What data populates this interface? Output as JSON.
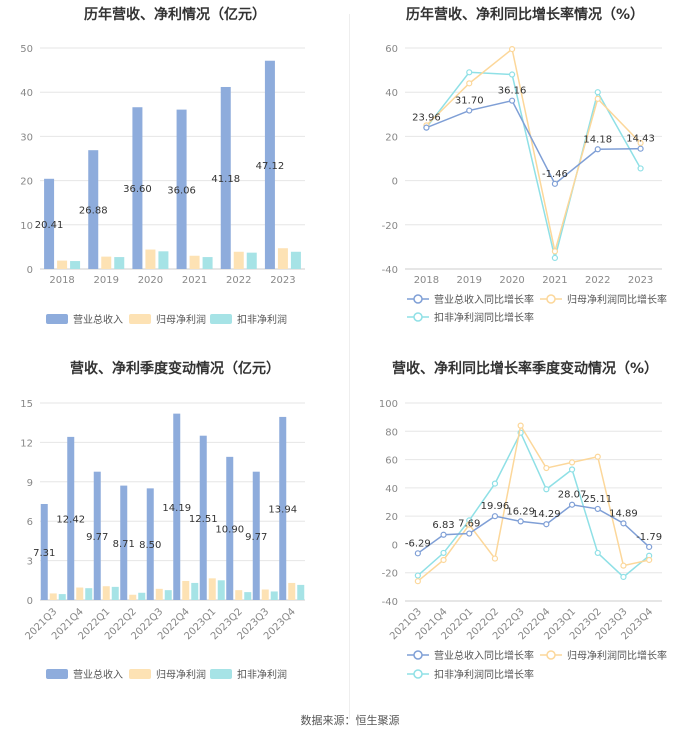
{
  "source": "数据来源：恒生聚源",
  "colors": {
    "revenue": "#8eacdc",
    "net_profit": "#fde2b4",
    "deducted_profit": "#a6e3e6",
    "grid": "#e6e6e6",
    "axis_text": "#888888",
    "label_text": "#333333"
  },
  "chart_data": [
    {
      "type": "bar",
      "title": "历年营收、净利情况（亿元）",
      "categories": [
        "2018",
        "2019",
        "2020",
        "2021",
        "2022",
        "2023"
      ],
      "ylim": [
        0,
        50
      ],
      "yticks": [
        0,
        10,
        20,
        30,
        40,
        50
      ],
      "series": [
        {
          "name": "营业总收入",
          "values": [
            20.41,
            26.88,
            36.6,
            36.06,
            41.18,
            47.12
          ],
          "labels": [
            "20.41",
            "26.88",
            "36.60",
            "36.06",
            "41.18",
            "47.12"
          ]
        },
        {
          "name": "归母净利润",
          "values": [
            1.9,
            2.8,
            4.4,
            3.0,
            3.9,
            4.7
          ]
        },
        {
          "name": "扣非净利润",
          "values": [
            1.8,
            2.7,
            4.0,
            2.7,
            3.7,
            3.9
          ]
        }
      ]
    },
    {
      "type": "line",
      "title": "历年营收、净利同比增长率情况（%）",
      "categories": [
        "2018",
        "2019",
        "2020",
        "2021",
        "2022",
        "2023"
      ],
      "ylim": [
        -40,
        60
      ],
      "yticks": [
        -40,
        -20,
        0,
        20,
        40,
        60
      ],
      "series": [
        {
          "name": "营业总收入同比增长率",
          "values": [
            23.96,
            31.7,
            36.16,
            -1.46,
            14.18,
            14.43
          ],
          "labels": [
            "23.96",
            "31.70",
            "36.16",
            "-1.46",
            "14.18",
            "14.43"
          ]
        },
        {
          "name": "归母净利润同比增长率",
          "values": [
            25.0,
            44.0,
            59.5,
            -32.0,
            37.0,
            17.0
          ]
        },
        {
          "name": "扣非净利润同比增长率",
          "values": [
            24.0,
            49.0,
            48.0,
            -35.0,
            40.0,
            5.5
          ]
        }
      ]
    },
    {
      "type": "bar",
      "title": "营收、净利季度变动情况（亿元）",
      "categories": [
        "2021Q3",
        "2021Q4",
        "2022Q1",
        "2022Q2",
        "2022Q3",
        "2022Q4",
        "2023Q1",
        "2023Q2",
        "2023Q3",
        "2023Q4"
      ],
      "ylim": [
        0,
        15
      ],
      "yticks": [
        0,
        3,
        6,
        9,
        12,
        15
      ],
      "series": [
        {
          "name": "营业总收入",
          "values": [
            7.31,
            12.42,
            9.77,
            8.71,
            8.5,
            14.19,
            12.51,
            10.9,
            9.77,
            13.94
          ],
          "labels": [
            "7.31",
            "12.42",
            "9.77",
            "8.71",
            "8.50",
            "14.19",
            "12.51",
            "10.90",
            "9.77",
            "13.94"
          ]
        },
        {
          "name": "归母净利润",
          "values": [
            0.5,
            0.95,
            1.05,
            0.4,
            0.85,
            1.45,
            1.65,
            0.75,
            0.8,
            1.3
          ]
        },
        {
          "name": "扣非净利润",
          "values": [
            0.45,
            0.9,
            1.0,
            0.55,
            0.75,
            1.3,
            1.5,
            0.6,
            0.65,
            1.15
          ]
        }
      ]
    },
    {
      "type": "line",
      "title": "营收、净利同比增长率季度变动情况（%）",
      "categories": [
        "2021Q3",
        "2021Q4",
        "2022Q1",
        "2022Q2",
        "2022Q3",
        "2022Q4",
        "2023Q1",
        "2023Q2",
        "2023Q3",
        "2023Q4"
      ],
      "ylim": [
        -40,
        100
      ],
      "yticks": [
        -40,
        -20,
        0,
        20,
        40,
        60,
        80,
        100
      ],
      "series": [
        {
          "name": "营业总收入同比增长率",
          "values": [
            -6.29,
            6.83,
            7.69,
            19.96,
            16.29,
            14.29,
            28.07,
            25.11,
            14.89,
            -1.79
          ],
          "labels": [
            "-6.29",
            "6.83",
            "7.69",
            "19.96",
            "16.29",
            "14.29",
            "28.07",
            "25.11",
            "14.89",
            "-1.79"
          ]
        },
        {
          "name": "归母净利润同比增长率",
          "values": [
            -26.0,
            -11.0,
            14.0,
            -10.0,
            84.0,
            54.0,
            58.0,
            62.0,
            -15.0,
            -11.0
          ]
        },
        {
          "name": "扣非净利润同比增长率",
          "values": [
            -22.0,
            -6.0,
            17.0,
            43.0,
            79.0,
            39.0,
            53.0,
            -6.0,
            -23.0,
            -8.0
          ]
        }
      ]
    }
  ]
}
